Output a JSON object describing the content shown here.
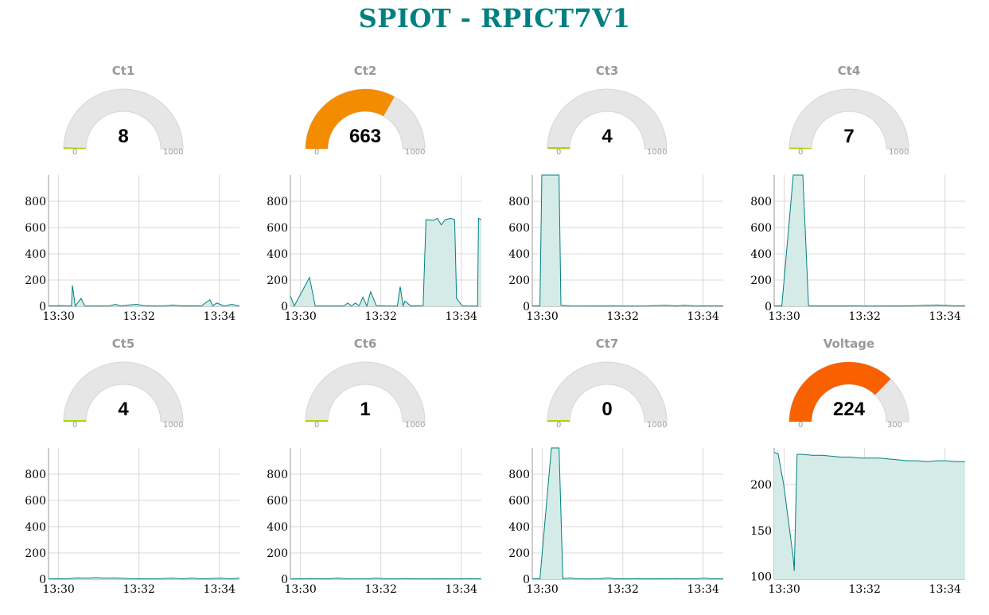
{
  "title": "SPIOT - RPICT7V1",
  "colors": {
    "title": "#008080",
    "line": "#008080",
    "fill": "#d5ebe8",
    "track": "#e6e6e6",
    "low": "#a9d70b",
    "mid": "#f38c00",
    "high": "#f96000"
  },
  "x_ticks": [
    "13:30",
    "13:32",
    "13:34"
  ],
  "panels": [
    {
      "label": "Ct1",
      "gauge": {
        "value": 8,
        "display": "8",
        "min": 0,
        "max": 1000,
        "min_label": "0",
        "max_label": "1000",
        "color": "#a9d70b"
      },
      "chart_data": {
        "type": "area",
        "x_range": [
          "13:29:45",
          "13:34:30"
        ],
        "ylim": [
          0,
          1000
        ],
        "y_ticks": [
          "800",
          "600",
          "400",
          "200",
          "0"
        ],
        "series": [
          {
            "values": [
              [
                0,
                2
              ],
              [
                0.06,
                5
              ],
              [
                0.12,
                3
              ],
              [
                0.125,
                160
              ],
              [
                0.14,
                2
              ],
              [
                0.17,
                60
              ],
              [
                0.19,
                3
              ],
              [
                0.25,
                2
              ],
              [
                0.32,
                4
              ],
              [
                0.35,
                15
              ],
              [
                0.38,
                3
              ],
              [
                0.42,
                10
              ],
              [
                0.46,
                15
              ],
              [
                0.5,
                5
              ],
              [
                0.55,
                3
              ],
              [
                0.6,
                2
              ],
              [
                0.65,
                10
              ],
              [
                0.7,
                3
              ],
              [
                0.75,
                4
              ],
              [
                0.8,
                3
              ],
              [
                0.845,
                50
              ],
              [
                0.86,
                4
              ],
              [
                0.88,
                25
              ],
              [
                0.92,
                3
              ],
              [
                0.96,
                15
              ],
              [
                1,
                2
              ]
            ]
          }
        ]
      }
    },
    {
      "label": "Ct2",
      "gauge": {
        "value": 663,
        "display": "663",
        "min": 0,
        "max": 1000,
        "min_label": "0",
        "max_label": "1000",
        "color": "#f38c00"
      },
      "chart_data": {
        "type": "area",
        "x_range": [
          "13:29:45",
          "13:34:30"
        ],
        "ylim": [
          0,
          1000
        ],
        "y_ticks": [
          "800",
          "600",
          "400",
          "200",
          "0"
        ],
        "series": [
          {
            "values": [
              [
                0,
                80
              ],
              [
                0.02,
                2
              ],
              [
                0.1,
                220
              ],
              [
                0.13,
                2
              ],
              [
                0.2,
                3
              ],
              [
                0.28,
                2
              ],
              [
                0.3,
                25
              ],
              [
                0.32,
                2
              ],
              [
                0.34,
                25
              ],
              [
                0.36,
                5
              ],
              [
                0.38,
                70
              ],
              [
                0.4,
                2
              ],
              [
                0.42,
                110
              ],
              [
                0.45,
                5
              ],
              [
                0.5,
                2
              ],
              [
                0.56,
                3
              ],
              [
                0.575,
                150
              ],
              [
                0.59,
                5
              ],
              [
                0.6,
                40
              ],
              [
                0.63,
                3
              ],
              [
                0.695,
                5
              ],
              [
                0.71,
                660
              ],
              [
                0.75,
                655
              ],
              [
                0.77,
                670
              ],
              [
                0.79,
                620
              ],
              [
                0.81,
                660
              ],
              [
                0.84,
                670
              ],
              [
                0.86,
                660
              ],
              [
                0.87,
                60
              ],
              [
                0.9,
                3
              ],
              [
                0.98,
                2
              ],
              [
                0.985,
                670
              ],
              [
                1,
                660
              ]
            ]
          }
        ]
      }
    },
    {
      "label": "Ct3",
      "gauge": {
        "value": 4,
        "display": "4",
        "min": 0,
        "max": 1000,
        "min_label": "0",
        "max_label": "1000",
        "color": "#a9d70b"
      },
      "chart_data": {
        "type": "area",
        "x_range": [
          "13:29:45",
          "13:34:30"
        ],
        "ylim": [
          0,
          1000
        ],
        "y_ticks": [
          "800",
          "600",
          "400",
          "200",
          "0"
        ],
        "series": [
          {
            "values": [
              [
                0,
                3
              ],
              [
                0.04,
                3
              ],
              [
                0.05,
                1000
              ],
              [
                0.14,
                1000
              ],
              [
                0.15,
                8
              ],
              [
                0.2,
                3
              ],
              [
                0.3,
                2
              ],
              [
                0.4,
                3
              ],
              [
                0.5,
                2
              ],
              [
                0.6,
                3
              ],
              [
                0.7,
                8
              ],
              [
                0.75,
                3
              ],
              [
                0.8,
                8
              ],
              [
                0.85,
                2
              ],
              [
                0.9,
                3
              ],
              [
                1,
                3
              ]
            ]
          }
        ]
      }
    },
    {
      "label": "Ct4",
      "gauge": {
        "value": 7,
        "display": "7",
        "min": 0,
        "max": 1000,
        "min_label": "0",
        "max_label": "1000",
        "color": "#a9d70b"
      },
      "chart_data": {
        "type": "area",
        "x_range": [
          "13:29:45",
          "13:34:30"
        ],
        "ylim": [
          0,
          1000
        ],
        "y_ticks": [
          "800",
          "600",
          "400",
          "200",
          "0"
        ],
        "series": [
          {
            "values": [
              [
                0,
                3
              ],
              [
                0.04,
                3
              ],
              [
                0.1,
                1000
              ],
              [
                0.15,
                1000
              ],
              [
                0.18,
                5
              ],
              [
                0.2,
                3
              ],
              [
                0.3,
                3
              ],
              [
                0.4,
                3
              ],
              [
                0.5,
                2
              ],
              [
                0.6,
                3
              ],
              [
                0.7,
                3
              ],
              [
                0.8,
                8
              ],
              [
                0.85,
                10
              ],
              [
                0.9,
                8
              ],
              [
                0.95,
                3
              ],
              [
                1,
                5
              ]
            ]
          }
        ]
      }
    },
    {
      "label": "Ct5",
      "gauge": {
        "value": 4,
        "display": "4",
        "min": 0,
        "max": 1000,
        "min_label": "0",
        "max_label": "1000",
        "color": "#a9d70b"
      },
      "chart_data": {
        "type": "area",
        "x_range": [
          "13:29:45",
          "13:34:30"
        ],
        "ylim": [
          0,
          1000
        ],
        "y_ticks": [
          "800",
          "600",
          "400",
          "200",
          "0"
        ],
        "series": [
          {
            "values": [
              [
                0,
                2
              ],
              [
                0.1,
                4
              ],
              [
                0.15,
                10
              ],
              [
                0.2,
                8
              ],
              [
                0.25,
                12
              ],
              [
                0.3,
                8
              ],
              [
                0.35,
                10
              ],
              [
                0.4,
                6
              ],
              [
                0.45,
                3
              ],
              [
                0.5,
                3
              ],
              [
                0.55,
                2
              ],
              [
                0.6,
                5
              ],
              [
                0.65,
                8
              ],
              [
                0.7,
                3
              ],
              [
                0.75,
                8
              ],
              [
                0.8,
                3
              ],
              [
                0.85,
                5
              ],
              [
                0.9,
                8
              ],
              [
                0.95,
                3
              ],
              [
                1,
                8
              ]
            ]
          }
        ]
      }
    },
    {
      "label": "Ct6",
      "gauge": {
        "value": 1,
        "display": "1",
        "min": 0,
        "max": 1000,
        "min_label": "0",
        "max_label": "1000",
        "color": "#a9d70b"
      },
      "chart_data": {
        "type": "area",
        "x_range": [
          "13:29:45",
          "13:34:30"
        ],
        "ylim": [
          0,
          1000
        ],
        "y_ticks": [
          "800",
          "600",
          "400",
          "200",
          "0"
        ],
        "series": [
          {
            "values": [
              [
                0,
                2
              ],
              [
                0.1,
                5
              ],
              [
                0.2,
                3
              ],
              [
                0.25,
                8
              ],
              [
                0.3,
                2
              ],
              [
                0.4,
                3
              ],
              [
                0.45,
                8
              ],
              [
                0.5,
                3
              ],
              [
                0.55,
                2
              ],
              [
                0.6,
                5
              ],
              [
                0.65,
                3
              ],
              [
                0.7,
                2
              ],
              [
                0.8,
                3
              ],
              [
                0.85,
                2
              ],
              [
                0.9,
                3
              ],
              [
                0.95,
                5
              ],
              [
                1,
                2
              ]
            ]
          }
        ]
      }
    },
    {
      "label": "Ct7",
      "gauge": {
        "value": 0,
        "display": "0",
        "min": 0,
        "max": 1000,
        "min_label": "0",
        "max_label": "1000",
        "color": "#a9d70b"
      },
      "chart_data": {
        "type": "area",
        "x_range": [
          "13:29:45",
          "13:34:30"
        ],
        "ylim": [
          0,
          1000
        ],
        "y_ticks": [
          "800",
          "600",
          "400",
          "200",
          "0"
        ],
        "series": [
          {
            "values": [
              [
                0,
                3
              ],
              [
                0.04,
                3
              ],
              [
                0.1,
                1000
              ],
              [
                0.14,
                1000
              ],
              [
                0.16,
                4
              ],
              [
                0.2,
                10
              ],
              [
                0.23,
                3
              ],
              [
                0.3,
                2
              ],
              [
                0.35,
                3
              ],
              [
                0.4,
                10
              ],
              [
                0.43,
                3
              ],
              [
                0.5,
                3
              ],
              [
                0.55,
                5
              ],
              [
                0.6,
                3
              ],
              [
                0.7,
                3
              ],
              [
                0.75,
                5
              ],
              [
                0.8,
                3
              ],
              [
                0.85,
                3
              ],
              [
                0.9,
                8
              ],
              [
                0.95,
                3
              ],
              [
                1,
                3
              ]
            ]
          }
        ]
      }
    },
    {
      "label": "Voltage",
      "gauge": {
        "value": 224,
        "display": "224",
        "min": 0,
        "max": 300,
        "min_label": "0",
        "max_label": "300",
        "color": "#f96000"
      },
      "chart_data": {
        "type": "area",
        "x_range": [
          "13:29:45",
          "13:34:30"
        ],
        "ylim": [
          97,
          240
        ],
        "y_ticks": [
          "200",
          "150",
          "100"
        ],
        "series": [
          {
            "values": [
              [
                0,
                235
              ],
              [
                0.02,
                234
              ],
              [
                0.05,
                200
              ],
              [
                0.1,
                120
              ],
              [
                0.105,
                106
              ],
              [
                0.12,
                233
              ],
              [
                0.15,
                233
              ],
              [
                0.2,
                232
              ],
              [
                0.25,
                232
              ],
              [
                0.3,
                231
              ],
              [
                0.35,
                230
              ],
              [
                0.4,
                230
              ],
              [
                0.45,
                229
              ],
              [
                0.5,
                229
              ],
              [
                0.55,
                229
              ],
              [
                0.6,
                228
              ],
              [
                0.65,
                227
              ],
              [
                0.7,
                226
              ],
              [
                0.75,
                226
              ],
              [
                0.8,
                225
              ],
              [
                0.85,
                226
              ],
              [
                0.9,
                226
              ],
              [
                0.95,
                225
              ],
              [
                1,
                225
              ]
            ]
          }
        ]
      }
    }
  ]
}
